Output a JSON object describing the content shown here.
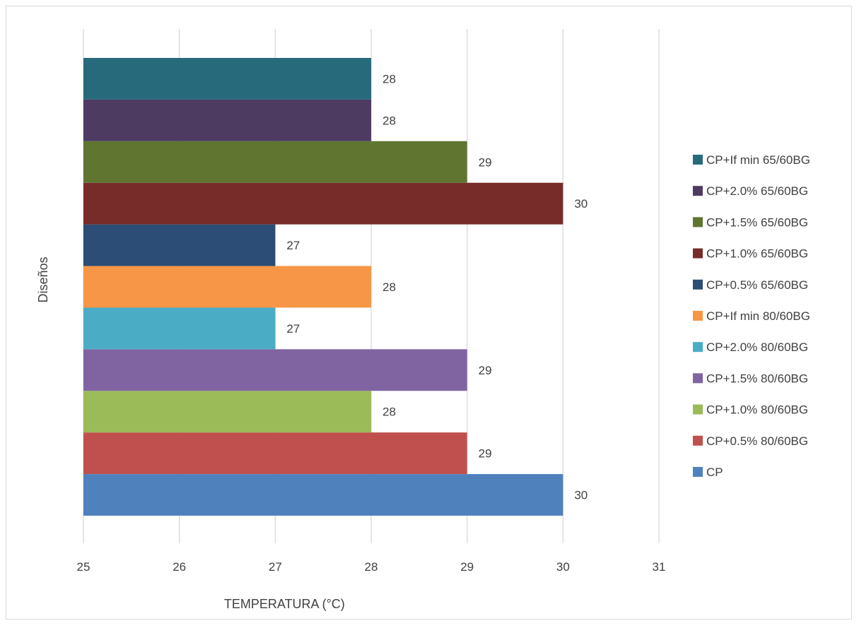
{
  "chart_data": {
    "type": "bar",
    "orientation": "horizontal",
    "title": "",
    "xlabel": "TEMPERATURA (°C)",
    "ylabel": "Diseños",
    "xlim": [
      25,
      31
    ],
    "xticks": [
      "25",
      "26",
      "27",
      "28",
      "29",
      "30",
      "31"
    ],
    "grid": true,
    "legend_position": "right",
    "series": [
      {
        "name": "CP",
        "value": 30,
        "label": "30",
        "color": "#4F81BD"
      },
      {
        "name": "CP+0.5% 80/60BG",
        "value": 29,
        "label": "29",
        "color": "#C0504D"
      },
      {
        "name": "CP+1.0% 80/60BG",
        "value": 28,
        "label": "28",
        "color": "#9BBB59"
      },
      {
        "name": "CP+1.5% 80/60BG",
        "value": 29,
        "label": "29",
        "color": "#8064A2"
      },
      {
        "name": "CP+2.0% 80/60BG",
        "value": 27,
        "label": "27",
        "color": "#4BACC6"
      },
      {
        "name": "CP+If min 80/60BG",
        "value": 28,
        "label": "28",
        "color": "#F79646"
      },
      {
        "name": "CP+0.5% 65/60BG",
        "value": 27,
        "label": "27",
        "color": "#2C4D75"
      },
      {
        "name": "CP+1.0% 65/60BG",
        "value": 30,
        "label": "30",
        "color": "#772C2A"
      },
      {
        "name": "CP+1.5% 65/60BG",
        "value": 29,
        "label": "29",
        "color": "#5F7530"
      },
      {
        "name": "CP+2.0% 65/60BG",
        "value": 28,
        "label": "28",
        "color": "#4D3B62"
      },
      {
        "name": "CP+If min 65/60BG",
        "value": 28,
        "label": "28",
        "color": "#276A7C"
      }
    ]
  }
}
